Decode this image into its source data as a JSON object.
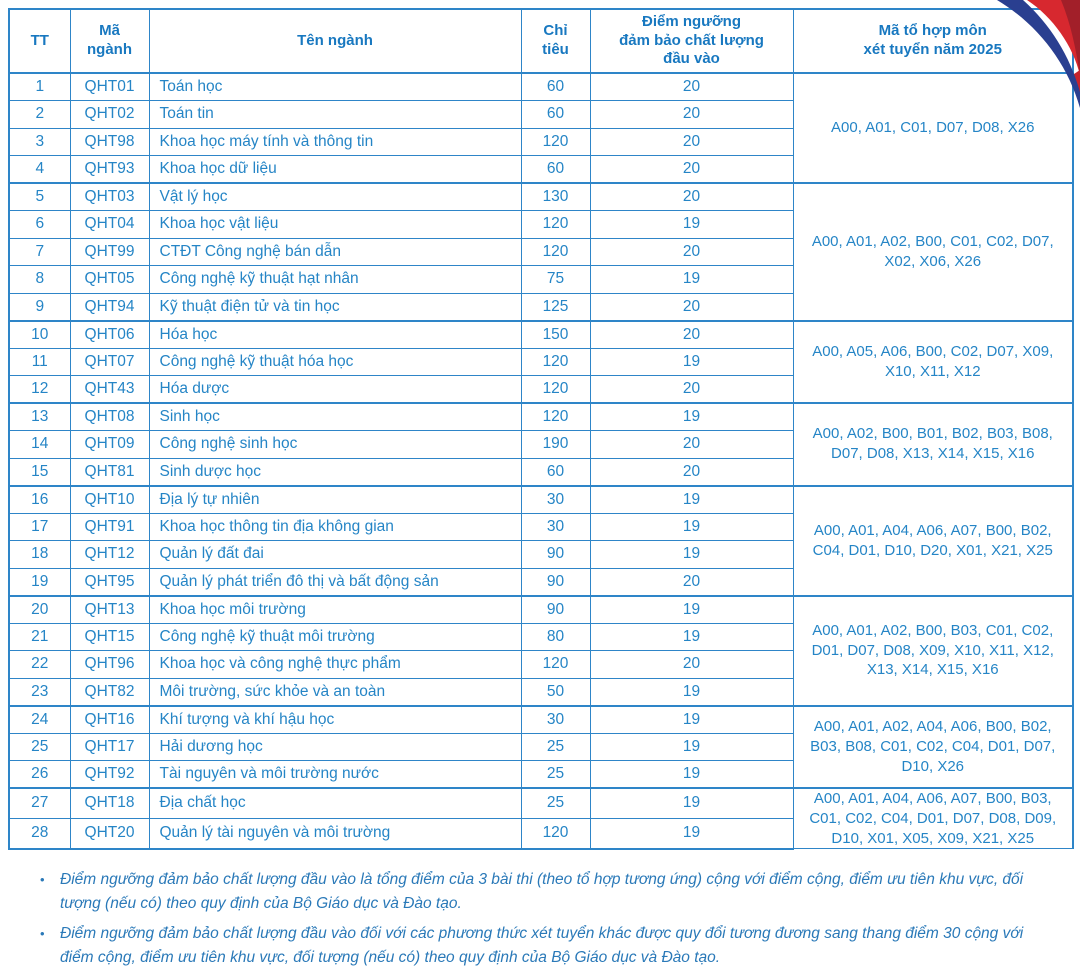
{
  "colors": {
    "table_border": "#2e85c8",
    "cell_text": "#2585c6",
    "header_text": "#1878c0",
    "note_text": "#2a79b8",
    "ribbon_navy": "#2a3f90",
    "ribbon_red": "#d7282f",
    "ribbon_dark_red": "#a21f29"
  },
  "table": {
    "headers": [
      "TT",
      "Mã\nngành",
      "Tên ngành",
      "Chỉ\ntiêu",
      "Điểm ngưỡng\nđảm bảo chất lượng\nđầu vào",
      "Mã tổ hợp môn\nxét tuyển năm 2025"
    ],
    "rows": [
      [
        "1",
        "QHT01",
        "Toán học",
        "60",
        "20"
      ],
      [
        "2",
        "QHT02",
        "Toán tin",
        "60",
        "20"
      ],
      [
        "3",
        "QHT98",
        "Khoa học máy tính và thông tin",
        "120",
        "20"
      ],
      [
        "4",
        "QHT93",
        "Khoa học dữ liệu",
        "60",
        "20"
      ],
      [
        "5",
        "QHT03",
        "Vật lý học",
        "130",
        "20"
      ],
      [
        "6",
        "QHT04",
        "Khoa học vật liệu",
        "120",
        "19"
      ],
      [
        "7",
        "QHT99",
        "CTĐT Công nghệ bán dẫn",
        "120",
        "20"
      ],
      [
        "8",
        "QHT05",
        "Công nghệ kỹ thuật hạt nhân",
        "75",
        "19"
      ],
      [
        "9",
        "QHT94",
        "Kỹ thuật điện tử và tin học",
        "125",
        "20"
      ],
      [
        "10",
        "QHT06",
        "Hóa học",
        "150",
        "20"
      ],
      [
        "11",
        "QHT07",
        "Công nghệ kỹ thuật hóa học",
        "120",
        "19"
      ],
      [
        "12",
        "QHT43",
        "Hóa dược",
        "120",
        "20"
      ],
      [
        "13",
        "QHT08",
        "Sinh học",
        "120",
        "19"
      ],
      [
        "14",
        "QHT09",
        "Công nghệ sinh học",
        "190",
        "20"
      ],
      [
        "15",
        "QHT81",
        "Sinh dược học",
        "60",
        "20"
      ],
      [
        "16",
        "QHT10",
        "Địa lý tự nhiên",
        "30",
        "19"
      ],
      [
        "17",
        "QHT91",
        "Khoa học thông tin địa không gian",
        "30",
        "19"
      ],
      [
        "18",
        "QHT12",
        "Quản lý đất đai",
        "90",
        "19"
      ],
      [
        "19",
        "QHT95",
        "Quản lý phát triển đô thị và bất động sản",
        "90",
        "20"
      ],
      [
        "20",
        "QHT13",
        "Khoa học môi trường",
        "90",
        "19"
      ],
      [
        "21",
        "QHT15",
        "Công nghệ kỹ thuật môi trường",
        "80",
        "19"
      ],
      [
        "22",
        "QHT96",
        "Khoa học và công nghệ thực phẩm",
        "120",
        "20"
      ],
      [
        "23",
        "QHT82",
        "Môi trường, sức khỏe và an toàn",
        "50",
        "19"
      ],
      [
        "24",
        "QHT16",
        "Khí tượng và khí hậu học",
        "30",
        "19"
      ],
      [
        "25",
        "QHT17",
        "Hải dương học",
        "25",
        "19"
      ],
      [
        "26",
        "QHT92",
        "Tài nguyên và môi trường nước",
        "25",
        "19"
      ],
      [
        "27",
        "QHT18",
        "Địa chất học",
        "25",
        "19"
      ],
      [
        "28",
        "QHT20",
        "Quản lý tài nguyên và môi trường",
        "120",
        "19"
      ]
    ],
    "groups": [
      {
        "start": 1,
        "end": 4,
        "combos": "A00, A01, C01, D07, D08, X26"
      },
      {
        "start": 5,
        "end": 9,
        "combos": "A00, A01, A02, B00, C01, C02, D07, X02, X06, X26"
      },
      {
        "start": 10,
        "end": 12,
        "combos": "A00, A05, A06, B00, C02, D07, X09, X10, X11, X12"
      },
      {
        "start": 13,
        "end": 15,
        "combos": "A00, A02, B00, B01, B02, B03, B08, D07, D08, X13, X14, X15, X16"
      },
      {
        "start": 16,
        "end": 19,
        "combos": "A00, A01, A04, A06, A07, B00, B02, C04, D01, D10, D20, X01, X21, X25"
      },
      {
        "start": 20,
        "end": 23,
        "combos": "A00, A01, A02, B00, B03, C01, C02, D01, D07, D08, X09, X10, X11, X12, X13, X14, X15, X16"
      },
      {
        "start": 24,
        "end": 26,
        "combos": "A00, A01, A02, A04, A06, B00, B02, B03, B08, C01, C02, C04, D01, D07, D10, X26"
      },
      {
        "start": 27,
        "end": 28,
        "combos": "A00, A01, A04, A06, A07, B00, B03, C01, C02, C04, D01, D07, D08, D09, D10, X01, X05, X09, X21, X25"
      }
    ]
  },
  "notes": {
    "bullet": "•",
    "items": [
      "Điểm ngưỡng đảm bảo chất lượng đầu vào là tổng điểm của 3 bài thi (theo tổ hợp tương ứng) cộng với điểm cộng, điểm ưu tiên khu vực, đối tượng (nếu có) theo quy định của Bộ Giáo dục và Đào tạo.",
      "Điểm ngưỡng đảm bảo chất lượng đầu vào đối với các phương thức xét tuyển khác được quy đổi tương đương sang thang điểm 30 cộng với điểm cộng, điểm ưu tiên khu vực, đối tượng (nếu có) theo quy định của Bộ Giáo dục và Đào tạo."
    ]
  }
}
